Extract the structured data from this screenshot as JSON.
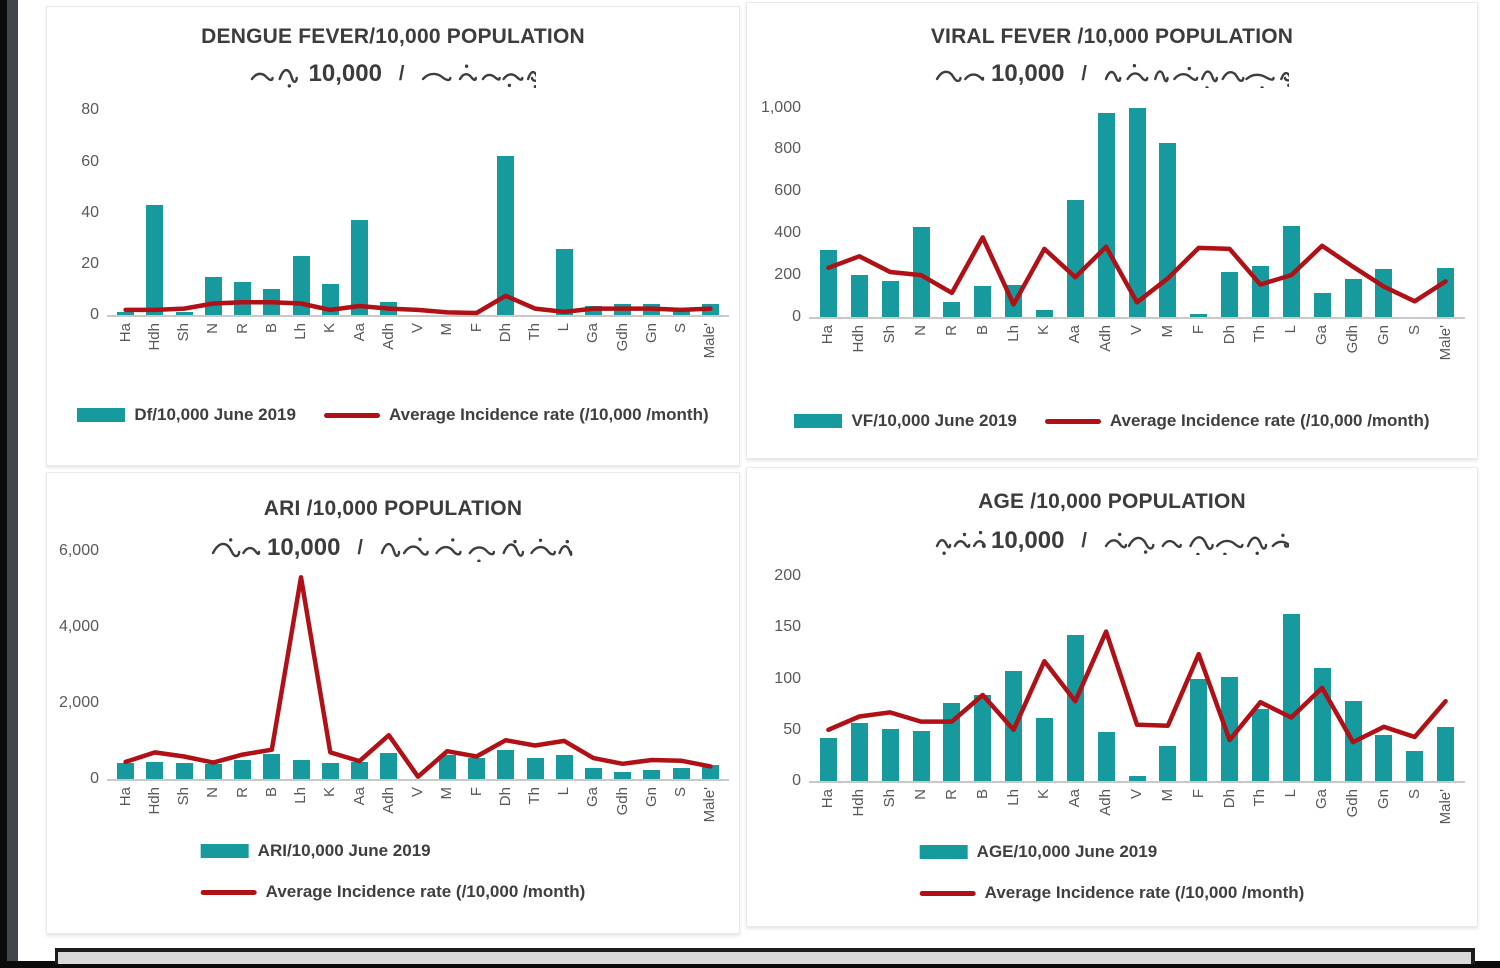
{
  "colors": {
    "bar_fill": "#169a9e",
    "line_stroke": "#b01116"
  },
  "chart_data": [
    {
      "type": "bar",
      "title": "DENGUE FEVER/10,000 POPULATION",
      "subtitle_number": "10,000",
      "subtitle_separator": "/",
      "subtitle_thaana": "ޑެންގޫ ހުން / 10,000 އާބާދީއަށް",
      "categories": [
        "Ha",
        "Hdh",
        "Sh",
        "N",
        "R",
        "B",
        "Lh",
        "K",
        "Aa",
        "Adh",
        "V",
        "M",
        "F",
        "Dh",
        "Th",
        "L",
        "Ga",
        "Gdh",
        "Gn",
        "S",
        "Male'"
      ],
      "series": [
        {
          "name": "Df/10,000 June 2019",
          "kind": "bar",
          "values": [
            1,
            43,
            1,
            15,
            13,
            10,
            23,
            12,
            37,
            5,
            0,
            0,
            0,
            62,
            0,
            26,
            3.5,
            4.5,
            4.5,
            1.5,
            4.5
          ]
        },
        {
          "name": "Average Incidence rate (/10,000 /month)",
          "kind": "line",
          "values": [
            2,
            2,
            2.5,
            4.5,
            5,
            5,
            4.5,
            2,
            3.5,
            2.5,
            2,
            1,
            0.8,
            7.5,
            2.5,
            1.2,
            2.5,
            2.5,
            2.5,
            2,
            2.5
          ]
        }
      ],
      "yticks": [
        0,
        20,
        40,
        60,
        80
      ],
      "ylim": [
        0,
        86
      ],
      "grid": false,
      "legend": [
        {
          "label": "Df/10,000 June 2019",
          "type": "bar"
        },
        {
          "label": "Average Incidence rate (/10,000 /month)",
          "type": "line"
        }
      ],
      "legend_position": "bottom-row"
    },
    {
      "type": "bar",
      "title": "VIRAL FEVER /10,000 POPULATION",
      "subtitle_number": "10,000",
      "subtitle_separator": "/",
      "subtitle_thaana": "ވައިރަލް ހުން / 10,000 އާބާދީއަށް",
      "categories": [
        "Ha",
        "Hdh",
        "Sh",
        "N",
        "R",
        "B",
        "Lh",
        "K",
        "Aa",
        "Adh",
        "V",
        "M",
        "F",
        "Dh",
        "Th",
        "L",
        "Ga",
        "Gdh",
        "Gn",
        "S",
        "Male'"
      ],
      "series": [
        {
          "name": "VF/10,000 June 2019",
          "kind": "bar",
          "values": [
            320,
            200,
            170,
            430,
            70,
            150,
            155,
            35,
            560,
            975,
            1000,
            830,
            15,
            215,
            245,
            435,
            115,
            180,
            230,
            0,
            235
          ]
        },
        {
          "name": "Average Incidence rate (/10,000 /month)",
          "kind": "line",
          "values": [
            235,
            290,
            215,
            200,
            115,
            380,
            60,
            325,
            190,
            335,
            70,
            185,
            330,
            325,
            155,
            200,
            340,
            240,
            145,
            75,
            170
          ]
        }
      ],
      "yticks": [
        0,
        200,
        400,
        600,
        800,
        1000
      ],
      "ylim": [
        0,
        1060
      ],
      "grid": false,
      "legend": [
        {
          "label": "VF/10,000 June 2019",
          "type": "bar"
        },
        {
          "label": "Average Incidence rate (/10,000 /month)",
          "type": "line"
        }
      ],
      "legend_position": "bottom-row"
    },
    {
      "type": "bar",
      "title": "ARI /10,000 POPULATION",
      "subtitle_number": "10,000",
      "subtitle_separator": "/",
      "subtitle_thaana": "އަރިދަފުސް ރޯގާ / 10,000 އާބާދީއަށް",
      "categories": [
        "Ha",
        "Hdh",
        "Sh",
        "N",
        "R",
        "B",
        "Lh",
        "K",
        "Aa",
        "Adh",
        "V",
        "M",
        "F",
        "Dh",
        "Th",
        "L",
        "Ga",
        "Gdh",
        "Gn",
        "S",
        "Male'"
      ],
      "series": [
        {
          "name": "ARI/10,000 June 2019",
          "kind": "bar",
          "values": [
            420,
            460,
            430,
            390,
            510,
            650,
            490,
            420,
            440,
            690,
            0,
            640,
            560,
            760,
            560,
            620,
            290,
            190,
            250,
            300,
            380
          ]
        },
        {
          "name": "Average Incidence rate (/10,000 /month)",
          "kind": "line",
          "values": [
            450,
            700,
            590,
            430,
            640,
            770,
            5300,
            700,
            470,
            1150,
            60,
            730,
            590,
            1020,
            880,
            1000,
            550,
            400,
            500,
            480,
            330
          ]
        }
      ],
      "yticks": [
        0,
        2000,
        4000,
        6000
      ],
      "ylim": [
        0,
        6200
      ],
      "grid": false,
      "legend": [
        {
          "label": "ARI/10,000 June 2019",
          "type": "bar"
        },
        {
          "label": "Average Incidence rate (/10,000 /month)",
          "type": "line"
        }
      ],
      "legend_position": "bottom-stacked"
    },
    {
      "type": "bar",
      "title": "AGE /10,000 POPULATION",
      "subtitle_number": "10,000",
      "subtitle_separator": "/",
      "subtitle_thaana": "ބޭރަށް ހިންގުން / 10,000 އާބާދީއަށް",
      "categories": [
        "Ha",
        "Hdh",
        "Sh",
        "N",
        "R",
        "B",
        "Lh",
        "K",
        "Aa",
        "Adh",
        "V",
        "M",
        "F",
        "Dh",
        "Th",
        "L",
        "Ga",
        "Gdh",
        "Gn",
        "S",
        "Male'"
      ],
      "series": [
        {
          "name": "AGE/10,000 June 2019",
          "kind": "bar",
          "values": [
            42,
            57,
            51,
            49,
            76,
            84,
            108,
            62,
            143,
            48,
            5,
            34,
            100,
            102,
            70,
            163,
            110,
            78,
            45,
            29,
            53
          ]
        },
        {
          "name": "Average Incidence rate (/10,000 /month)",
          "kind": "line",
          "values": [
            50,
            63,
            67,
            58,
            58,
            84,
            50,
            117,
            78,
            146,
            55,
            54,
            124,
            40,
            77,
            62,
            91,
            38,
            53,
            43,
            78
          ]
        }
      ],
      "yticks": [
        0,
        50,
        100,
        150,
        200
      ],
      "ylim": [
        0,
        212
      ],
      "grid": false,
      "legend": [
        {
          "label": "AGE/10,000 June 2019",
          "type": "bar"
        },
        {
          "label": "Average Incidence rate (/10,000 /month)",
          "type": "line"
        }
      ],
      "legend_position": "bottom-stacked"
    }
  ]
}
